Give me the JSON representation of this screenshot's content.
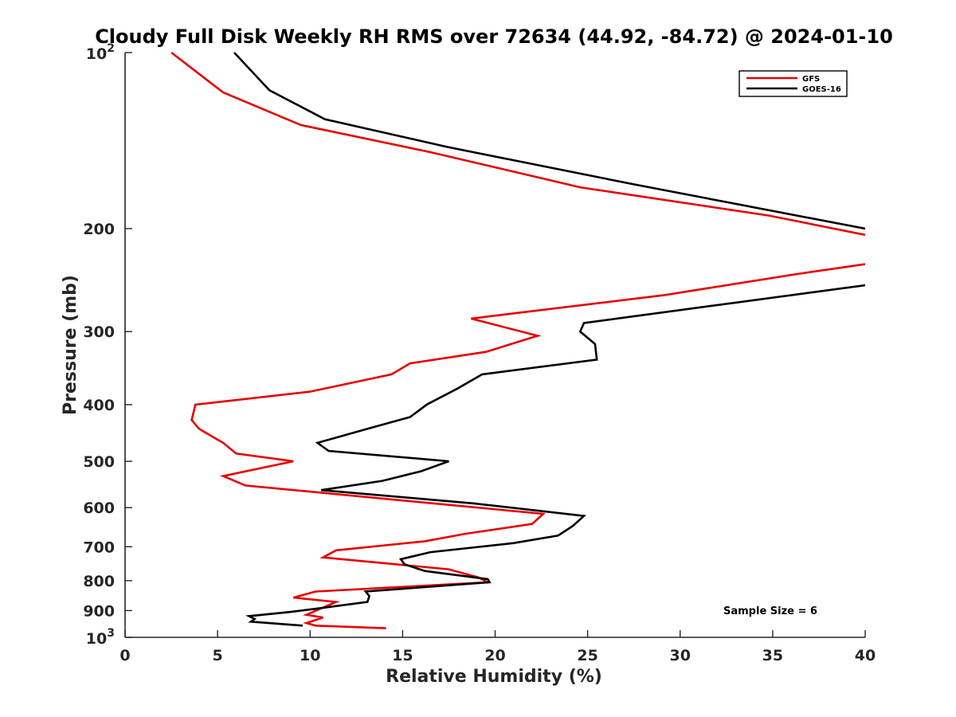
{
  "chart_data": {
    "type": "line",
    "title": "Cloudy Full Disk Weekly RH RMS over 72634 (44.92, -84.72) @ 2024-01-10",
    "xlabel": "Relative Humidity (%)",
    "ylabel": "Pressure (mb)",
    "xlim": [
      0,
      40
    ],
    "ylim": [
      1000,
      100
    ],
    "yscale": "log",
    "y_reversed": true,
    "grid": false,
    "legend_position": "top-right",
    "xticks": [
      0,
      5,
      10,
      15,
      20,
      25,
      30,
      35,
      40
    ],
    "yticks": [
      {
        "value": 100,
        "base": "10",
        "exp": "2"
      },
      {
        "value": 200,
        "label": "200"
      },
      {
        "value": 300,
        "label": "300"
      },
      {
        "value": 400,
        "label": "400"
      },
      {
        "value": 500,
        "label": "500"
      },
      {
        "value": 600,
        "label": "600"
      },
      {
        "value": 700,
        "label": "700"
      },
      {
        "value": 800,
        "label": "800"
      },
      {
        "value": 900,
        "label": "900"
      },
      {
        "value": 1000,
        "base": "10",
        "exp": "3"
      }
    ],
    "annotation": "Sample Size = 6",
    "series": [
      {
        "name": "GFS",
        "color": "#e60000",
        "points": [
          [
            14.1,
            965
          ],
          [
            10.3,
            955
          ],
          [
            9.8,
            945
          ],
          [
            10.7,
            925
          ],
          [
            9.8,
            915
          ],
          [
            10.5,
            895
          ],
          [
            11.4,
            870
          ],
          [
            9.1,
            855
          ],
          [
            10.3,
            835
          ],
          [
            19.6,
            805
          ],
          [
            19.1,
            790
          ],
          [
            17.5,
            765
          ],
          [
            10.7,
            730
          ],
          [
            11.4,
            710
          ],
          [
            16.2,
            685
          ],
          [
            18.4,
            665
          ],
          [
            22.0,
            640
          ],
          [
            22.6,
            615
          ],
          [
            6.5,
            550
          ],
          [
            5.3,
            530
          ],
          [
            9.1,
            500
          ],
          [
            6.0,
            485
          ],
          [
            5.3,
            465
          ],
          [
            4.0,
            440
          ],
          [
            3.6,
            425
          ],
          [
            3.8,
            400
          ],
          [
            10.0,
            380
          ],
          [
            14.4,
            355
          ],
          [
            15.4,
            340
          ],
          [
            19.5,
            325
          ],
          [
            22.3,
            305
          ],
          [
            18.7,
            285
          ],
          [
            29.1,
            260
          ],
          [
            36.0,
            240
          ],
          [
            40.0,
            230
          ]
        ]
      },
      {
        "name": "GOES-16",
        "color": "#000000",
        "points": [
          [
            9.6,
            955
          ],
          [
            6.8,
            940
          ],
          [
            7.0,
            930
          ],
          [
            6.7,
            920
          ],
          [
            8.9,
            905
          ],
          [
            10.7,
            890
          ],
          [
            13.1,
            870
          ],
          [
            13.2,
            850
          ],
          [
            13.0,
            835
          ],
          [
            19.7,
            805
          ],
          [
            19.6,
            795
          ],
          [
            16.2,
            770
          ],
          [
            15.1,
            750
          ],
          [
            14.9,
            735
          ],
          [
            16.5,
            715
          ],
          [
            21.0,
            690
          ],
          [
            23.4,
            670
          ],
          [
            24.2,
            645
          ],
          [
            24.8,
            620
          ],
          [
            18.8,
            590
          ],
          [
            10.6,
            560
          ],
          [
            13.9,
            540
          ],
          [
            16.0,
            520
          ],
          [
            17.5,
            500
          ],
          [
            11.0,
            480
          ],
          [
            10.4,
            465
          ],
          [
            13.1,
            440
          ],
          [
            15.4,
            420
          ],
          [
            16.3,
            400
          ],
          [
            18.0,
            375
          ],
          [
            19.3,
            355
          ],
          [
            25.5,
            335
          ],
          [
            25.4,
            315
          ],
          [
            24.6,
            300
          ],
          [
            24.8,
            290
          ],
          [
            40.0,
            250
          ]
        ]
      }
    ],
    "series_upper": [
      {
        "name": "GFS",
        "color": "#e60000",
        "points": [
          [
            40.0,
            205
          ],
          [
            34.8,
            190
          ],
          [
            24.6,
            170
          ],
          [
            16.5,
            148
          ],
          [
            9.5,
            133
          ],
          [
            5.3,
            117
          ],
          [
            2.5,
            100
          ]
        ]
      },
      {
        "name": "GOES-16",
        "color": "#000000",
        "points": [
          [
            40.0,
            200
          ],
          [
            27.5,
            168
          ],
          [
            17.4,
            145
          ],
          [
            10.8,
            130
          ],
          [
            7.8,
            116
          ],
          [
            5.9,
            100
          ]
        ]
      }
    ]
  }
}
